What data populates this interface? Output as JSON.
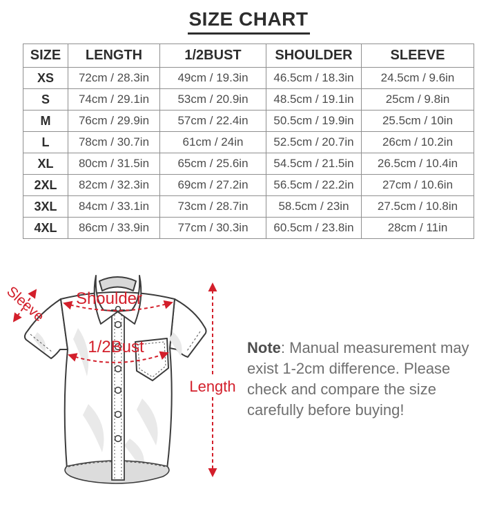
{
  "title": "SIZE CHART",
  "table": {
    "headers": [
      "SIZE",
      "LENGTH",
      "1/2BUST",
      "SHOULDER",
      "SLEEVE"
    ],
    "rows": [
      [
        "XS",
        "72cm / 28.3in",
        "49cm / 19.3in",
        "46.5cm / 18.3in",
        "24.5cm / 9.6in"
      ],
      [
        "S",
        "74cm / 29.1in",
        "53cm / 20.9in",
        "48.5cm / 19.1in",
        "25cm / 9.8in"
      ],
      [
        "M",
        "76cm / 29.9in",
        "57cm / 22.4in",
        "50.5cm / 19.9in",
        "25.5cm / 10in"
      ],
      [
        "L",
        "78cm / 30.7in",
        "61cm / 24in",
        "52.5cm / 20.7in",
        "26cm / 10.2in"
      ],
      [
        "XL",
        "80cm / 31.5in",
        "65cm / 25.6in",
        "54.5cm / 21.5in",
        "26.5cm / 10.4in"
      ],
      [
        "2XL",
        "82cm / 32.3in",
        "69cm / 27.2in",
        "56.5cm / 22.2in",
        "27cm / 10.6in"
      ],
      [
        "3XL",
        "84cm / 33.1in",
        "73cm / 28.7in",
        "58.5cm / 23in",
        "27.5cm / 10.8in"
      ],
      [
        "4XL",
        "86cm / 33.9in",
        "77cm / 30.3in",
        "60.5cm / 23.8in",
        "28cm / 11in"
      ]
    ]
  },
  "diagram": {
    "sleeve_label": "Sleeve",
    "shoulder_label": "Shoulder",
    "half_bust_label": "1/2Bust",
    "length_label": "Length",
    "accent_color": "#d31f2b"
  },
  "note": {
    "label": "Note",
    "text": ": Manual measurement may exist 1-2cm difference. Please check and compare the size carefully before buying!"
  }
}
